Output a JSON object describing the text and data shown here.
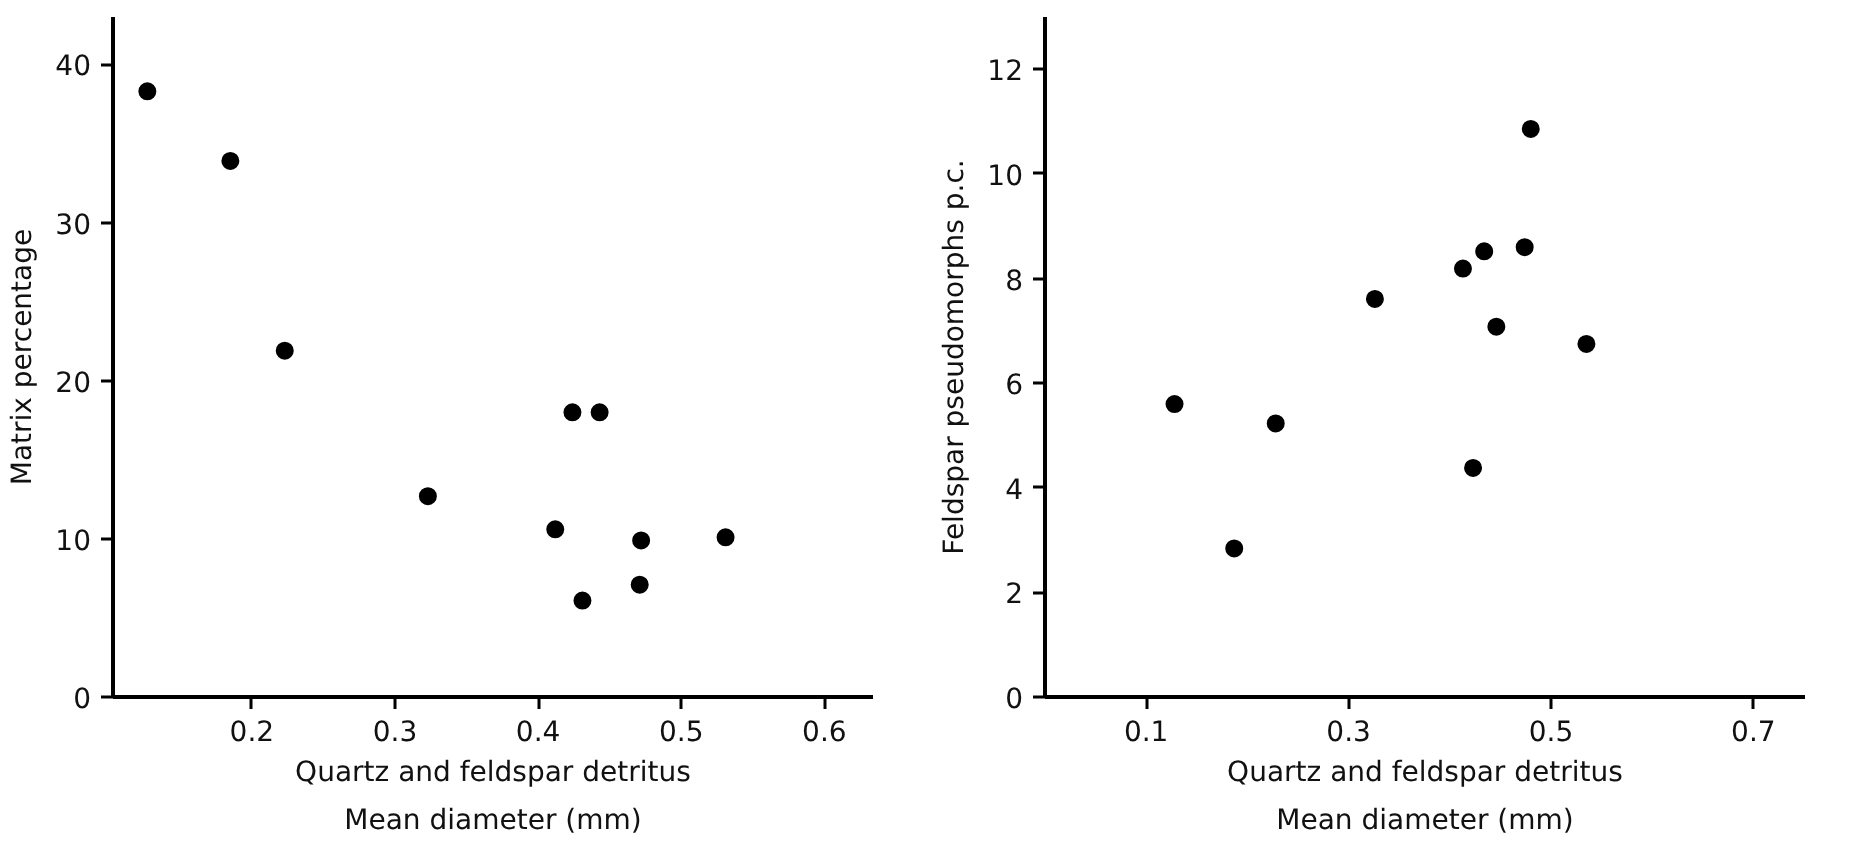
{
  "chart_data": [
    {
      "type": "scatter",
      "xlabel": "Quartz and feldspar detritus\nMean diameter (mm)",
      "ylabel": "Matrix percentage",
      "marker": "circle",
      "x": [
        0.127,
        0.185,
        0.223,
        0.323,
        0.412,
        0.424,
        0.443,
        0.431,
        0.472,
        0.471,
        0.531
      ],
      "series": [
        {
          "color": "#000000",
          "values": [
            38.3,
            33.9,
            21.9,
            12.7,
            10.6,
            18.0,
            18.0,
            6.1,
            9.9,
            7.1,
            10.1
          ]
        }
      ],
      "xlim": [
        0.103,
        0.634
      ],
      "ylim": [
        0,
        43
      ],
      "xticks": [
        0.2,
        0.3,
        0.4,
        0.5,
        0.6
      ],
      "yticks": [
        0,
        10,
        20,
        30,
        40
      ]
    },
    {
      "type": "scatter",
      "xlabel": "Quartz and feldspar detritus\nMean diameter (mm)",
      "ylabel": "Feldspar pseudomorphs p.c.",
      "marker": "circle",
      "x": [
        0.128,
        0.187,
        0.228,
        0.326,
        0.413,
        0.434,
        0.423,
        0.446,
        0.474,
        0.48,
        0.535
      ],
      "series": [
        {
          "color": "#000000",
          "values": [
            5.6,
            2.84,
            5.23,
            7.61,
            8.19,
            8.52,
            4.38,
            7.08,
            8.6,
            10.86,
            6.75
          ]
        }
      ],
      "xlim": [
        0.0,
        0.751
      ],
      "ylim": [
        0,
        13
      ],
      "xticks": [
        0.1,
        0.3,
        0.5,
        0.7
      ],
      "yticks": [
        0,
        2,
        4,
        6,
        8,
        10,
        12
      ]
    }
  ]
}
